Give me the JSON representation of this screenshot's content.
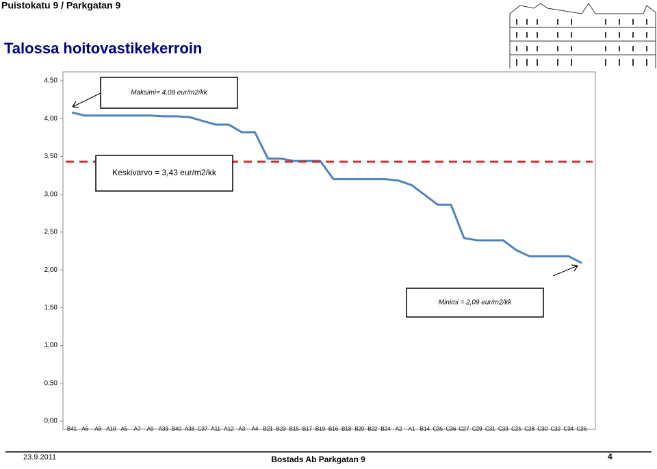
{
  "header": "Puistokatu 9 / Parkgatan 9",
  "chart_data": {
    "type": "line",
    "title": "Talossa hoitovastikekerroin",
    "categories": [
      "B41",
      "A6",
      "A8",
      "A10",
      "A5",
      "A7",
      "A9",
      "A39",
      "B40",
      "A38",
      "C37",
      "A11",
      "A12",
      "A3",
      "A4",
      "B21",
      "B23",
      "B15",
      "B17",
      "B19",
      "B16",
      "B18",
      "B20",
      "B22",
      "B24",
      "A2",
      "A1",
      "B14",
      "C35",
      "C36",
      "C27",
      "C29",
      "C31",
      "C33",
      "C25",
      "C28",
      "C30",
      "C32",
      "C34",
      "C26"
    ],
    "values": [
      4.08,
      4.04,
      4.04,
      4.04,
      4.04,
      4.04,
      4.04,
      4.03,
      4.03,
      4.02,
      3.97,
      3.92,
      3.92,
      3.82,
      3.82,
      3.47,
      3.47,
      3.44,
      3.44,
      3.44,
      3.2,
      3.2,
      3.2,
      3.2,
      3.2,
      3.18,
      3.12,
      2.99,
      2.86,
      2.86,
      2.42,
      2.39,
      2.39,
      2.39,
      2.26,
      2.18,
      2.18,
      2.18,
      2.18,
      2.09
    ],
    "color": "#4f81bd",
    "ylim": [
      0,
      4.5
    ],
    "yticks": [
      {
        "value": 0,
        "label": "0,00"
      },
      {
        "value": 0.5,
        "label": "0,50"
      },
      {
        "value": 1,
        "label": "1,00"
      },
      {
        "value": 1.5,
        "label": "1,50"
      },
      {
        "value": 2,
        "label": "2,00"
      },
      {
        "value": 2.5,
        "label": "2,50"
      },
      {
        "value": 3,
        "label": "3,00"
      },
      {
        "value": 3.5,
        "label": "3,50"
      },
      {
        "value": 4,
        "label": "4,00"
      },
      {
        "value": 4.5,
        "label": "4,50"
      }
    ],
    "reference_line": {
      "value": 3.43,
      "color": "#e0242b"
    },
    "annotations": [
      "Maksimi= 4,08 eur/m2/kk",
      "Keskivarvo = 3,43 eur/m2/kk",
      "Minimi = 2,09 eur/m2/kk"
    ]
  },
  "footer": {
    "date": "23.9.2011",
    "company": "Bostads Ab Parkgatan 9",
    "page": "4"
  }
}
